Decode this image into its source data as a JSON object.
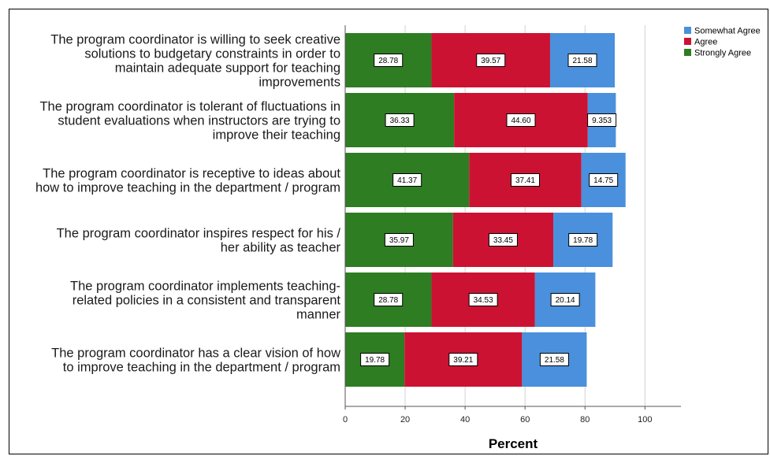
{
  "chart_data": {
    "type": "bar",
    "orientation": "horizontal",
    "stacked": true,
    "categories": [
      "The program coordinator is willing to seek creative solutions to budgetary constraints in order to maintain adequate support for teaching improvements",
      "The program coordinator is tolerant of fluctuations in student evaluations when instructors are trying to improve their teaching",
      "The program coordinator is receptive to ideas about how to improve teaching in the department / program",
      "The program coordinator inspires respect for his / her ability as teacher",
      "The program coordinator implements teaching-related policies in a consistent and transparent manner",
      "The program coordinator has a clear vision of how to improve teaching in the department / program"
    ],
    "category_lines": [
      [
        "The program coordinator is willing to seek creative",
        "solutions to budgetary constraints in order to",
        "maintain adequate support for teaching",
        "improvements"
      ],
      [
        "The program coordinator is tolerant of fluctuations in",
        "student evaluations when instructors are trying to",
        "improve their teaching"
      ],
      [
        "The program coordinator is receptive to ideas about",
        "how to improve teaching in the department / program"
      ],
      [
        "The program coordinator inspires respect for his /",
        "her ability as teacher"
      ],
      [
        "The program coordinator implements teaching-",
        "related policies in a consistent and transparent",
        "manner"
      ],
      [
        "The program coordinator has a clear vision of how",
        "to improve teaching in the department / program"
      ]
    ],
    "series": [
      {
        "name": "Strongly Agree",
        "color": "#2e7d22",
        "values": [
          28.78,
          36.33,
          41.37,
          35.97,
          28.78,
          19.78
        ],
        "labels": [
          "28.78",
          "36.33",
          "41.37",
          "35.97",
          "28.78",
          "19.78"
        ]
      },
      {
        "name": "Agree",
        "color": "#cc1232",
        "values": [
          39.57,
          44.6,
          37.41,
          33.45,
          34.53,
          39.21
        ],
        "labels": [
          "39.57",
          "44.60",
          "37.41",
          "33.45",
          "34.53",
          "39.21"
        ]
      },
      {
        "name": "Somewhat Agree",
        "color": "#4a90dc",
        "values": [
          21.58,
          9.353,
          14.75,
          19.78,
          20.14,
          21.58
        ],
        "labels": [
          "21.58",
          "9.353",
          "14.75",
          "19.78",
          "20.14",
          "21.58"
        ]
      }
    ],
    "legend_order": [
      "Somewhat Agree",
      "Agree",
      "Strongly Agree"
    ],
    "legend_position": "top-right",
    "xlabel": "Percent",
    "ylabel": "",
    "title": "",
    "xlim": [
      0,
      112
    ],
    "xticks": [
      0,
      20,
      40,
      60,
      80,
      100
    ],
    "grid": "vertical"
  }
}
